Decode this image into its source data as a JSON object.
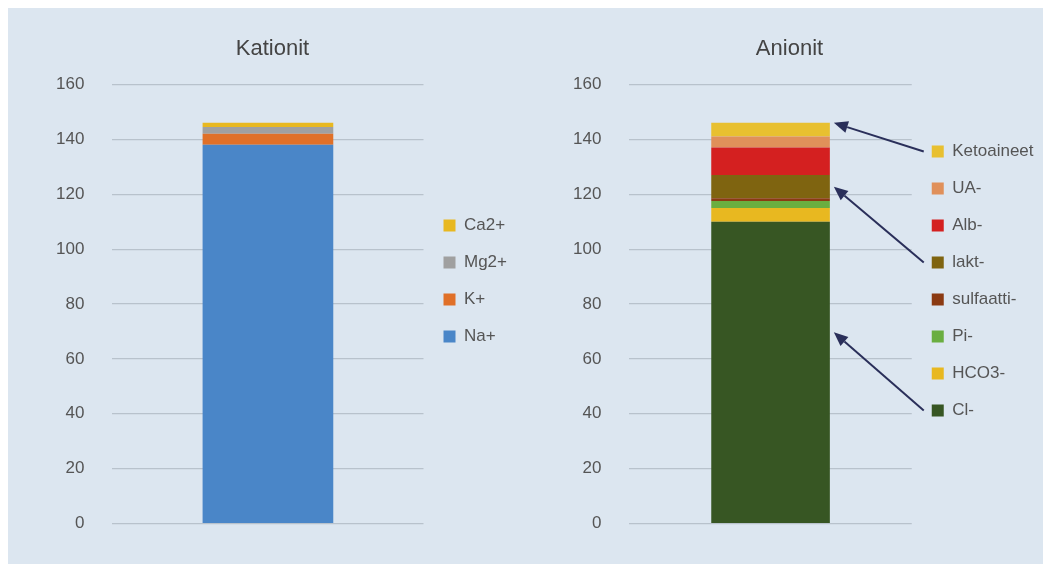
{
  "chart_data": [
    {
      "type": "bar",
      "title": "Kationit",
      "categories": [
        null
      ],
      "stacked": true,
      "ylim": [
        0,
        160
      ],
      "yticks": [
        0,
        20,
        40,
        60,
        80,
        100,
        120,
        140,
        160
      ],
      "grid": "y",
      "legend": "right",
      "series": [
        {
          "name": "Na+",
          "color": "#4a86c8",
          "values": [
            138
          ]
        },
        {
          "name": "K+",
          "color": "#e07028",
          "values": [
            4
          ]
        },
        {
          "name": "Mg2+",
          "color": "#a0a0a0",
          "values": [
            2.5
          ]
        },
        {
          "name": "Ca2+",
          "color": "#e8b820",
          "values": [
            1.5
          ]
        }
      ]
    },
    {
      "type": "bar",
      "title": "Anionit",
      "categories": [
        null
      ],
      "stacked": true,
      "ylim": [
        0,
        160
      ],
      "yticks": [
        0,
        20,
        40,
        60,
        80,
        100,
        120,
        140,
        160
      ],
      "grid": "y",
      "legend": "right",
      "series": [
        {
          "name": "Cl-",
          "color": "#375623",
          "values": [
            110
          ]
        },
        {
          "name": "HCO3-",
          "color": "#e8b820",
          "values": [
            5
          ]
        },
        {
          "name": "Pi-",
          "color": "#6aae40",
          "values": [
            2.5
          ]
        },
        {
          "name": "sulfaatti-",
          "color": "#8b3a12",
          "values": [
            1
          ]
        },
        {
          "name": "lakt-",
          "color": "#7f6410",
          "values": [
            8.5
          ]
        },
        {
          "name": "Alb-",
          "color": "#d42020",
          "values": [
            10
          ]
        },
        {
          "name": "UA-",
          "color": "#e0905a",
          "values": [
            4
          ]
        },
        {
          "name": "Ketoaineet",
          "color": "#e8c030",
          "values": [
            5
          ]
        }
      ]
    }
  ]
}
